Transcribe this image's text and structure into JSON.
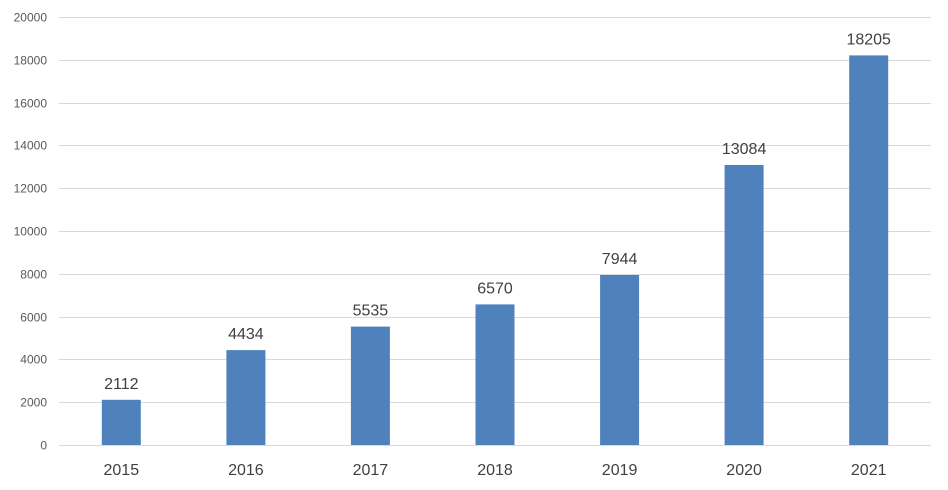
{
  "chart_data": {
    "type": "bar",
    "categories": [
      "2015",
      "2016",
      "2017",
      "2018",
      "2019",
      "2020",
      "2021"
    ],
    "series": [
      {
        "values": [
          2112,
          4434,
          5535,
          6570,
          7944,
          13084,
          18205
        ],
        "color": "#4f81bd"
      }
    ],
    "data_labels": [
      "2112",
      "4434",
      "5535",
      "6570",
      "7944",
      "13084",
      "18205"
    ],
    "ylim": [
      0,
      20000
    ],
    "yticks": [
      0,
      2000,
      4000,
      6000,
      8000,
      10000,
      12000,
      14000,
      16000,
      18000,
      20000
    ],
    "ytick_labels": [
      "0",
      "2000",
      "4000",
      "6000",
      "8000",
      "10000",
      "12000",
      "14000",
      "16000",
      "18000",
      "20000"
    ],
    "grid": true,
    "gridline_color": "#d9d9d9",
    "title": "",
    "xlabel": "",
    "ylabel": ""
  }
}
